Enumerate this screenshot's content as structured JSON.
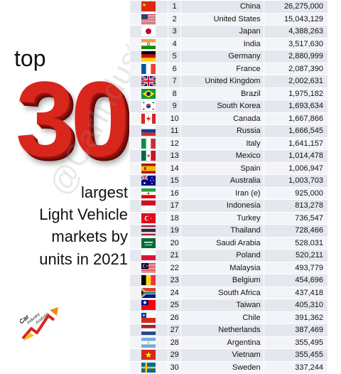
{
  "headline": {
    "top_word": "top",
    "number": "30",
    "sub_lines": [
      "largest",
      "Light Vehicle",
      "markets by",
      "units in 2021"
    ]
  },
  "watermark": "@CarIndustryAnalysis",
  "logo": {
    "words": [
      "Car",
      "Industry",
      "Analysis"
    ]
  },
  "colors": {
    "number_red": "#d8261c",
    "row_odd": "#e4e7ee",
    "row_even": "#f3f4f8"
  },
  "chart_data": {
    "type": "table",
    "title": "top 30 largest Light Vehicle markets by units in 2021",
    "columns": [
      "flag",
      "rank",
      "country",
      "units"
    ],
    "rows": [
      {
        "rank": "1",
        "country": "China",
        "units": "26,275,000",
        "flag": "china-flag-icon"
      },
      {
        "rank": "2",
        "country": "United States",
        "units": "15,043,129",
        "flag": "usa-flag-icon"
      },
      {
        "rank": "3",
        "country": "Japan",
        "units": "4,388,263",
        "flag": "japan-flag-icon"
      },
      {
        "rank": "4",
        "country": "India",
        "units": "3,517,630",
        "flag": "india-flag-icon"
      },
      {
        "rank": "5",
        "country": "Germany",
        "units": "2,880,999",
        "flag": "germany-flag-icon"
      },
      {
        "rank": "6",
        "country": "France",
        "units": "2,087,390",
        "flag": "france-flag-icon"
      },
      {
        "rank": "7",
        "country": "United Kingdom",
        "units": "2,002,631",
        "flag": "uk-flag-icon"
      },
      {
        "rank": "8",
        "country": "Brazil",
        "units": "1,975,182",
        "flag": "brazil-flag-icon"
      },
      {
        "rank": "9",
        "country": "South Korea",
        "units": "1,693,634",
        "flag": "south-korea-flag-icon"
      },
      {
        "rank": "10",
        "country": "Canada",
        "units": "1,667,866",
        "flag": "canada-flag-icon"
      },
      {
        "rank": "11",
        "country": "Russia",
        "units": "1,666,545",
        "flag": "russia-flag-icon"
      },
      {
        "rank": "12",
        "country": "Italy",
        "units": "1,641,157",
        "flag": "italy-flag-icon"
      },
      {
        "rank": "13",
        "country": "Mexico",
        "units": "1,014,478",
        "flag": "mexico-flag-icon"
      },
      {
        "rank": "14",
        "country": "Spain",
        "units": "1,006,947",
        "flag": "spain-flag-icon"
      },
      {
        "rank": "15",
        "country": "Australia",
        "units": "1,003,703",
        "flag": "australia-flag-icon"
      },
      {
        "rank": "16",
        "country": "Iran (e)",
        "units": "925,000",
        "flag": "iran-flag-icon"
      },
      {
        "rank": "17",
        "country": "Indonesia",
        "units": "813,278",
        "flag": "indonesia-flag-icon"
      },
      {
        "rank": "18",
        "country": "Turkey",
        "units": "736,547",
        "flag": "turkey-flag-icon"
      },
      {
        "rank": "19",
        "country": "Thailand",
        "units": "728,466",
        "flag": "thailand-flag-icon"
      },
      {
        "rank": "20",
        "country": "Saudi Arabia",
        "units": "528,031",
        "flag": "saudi-arabia-flag-icon"
      },
      {
        "rank": "21",
        "country": "Poland",
        "units": "520,211",
        "flag": "poland-flag-icon"
      },
      {
        "rank": "22",
        "country": "Malaysia",
        "units": "493,779",
        "flag": "malaysia-flag-icon"
      },
      {
        "rank": "23",
        "country": "Belgium",
        "units": "454,696",
        "flag": "belgium-flag-icon"
      },
      {
        "rank": "24",
        "country": "South Africa",
        "units": "437,418",
        "flag": "south-africa-flag-icon"
      },
      {
        "rank": "25",
        "country": "Taiwan",
        "units": "405,310",
        "flag": "taiwan-flag-icon"
      },
      {
        "rank": "26",
        "country": "Chile",
        "units": "391,362",
        "flag": "chile-flag-icon"
      },
      {
        "rank": "27",
        "country": "Netherlands",
        "units": "387,469",
        "flag": "netherlands-flag-icon"
      },
      {
        "rank": "28",
        "country": "Argentina",
        "units": "355,495",
        "flag": "argentina-flag-icon"
      },
      {
        "rank": "29",
        "country": "Vietnam",
        "units": "355,455",
        "flag": "vietnam-flag-icon"
      },
      {
        "rank": "30",
        "country": "Sweden",
        "units": "337,244",
        "flag": "sweden-flag-icon"
      }
    ]
  }
}
